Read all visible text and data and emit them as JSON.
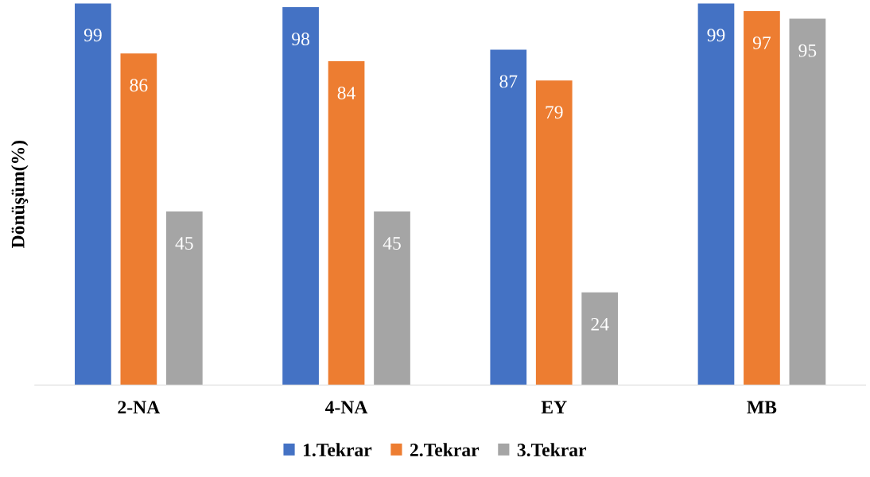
{
  "chart_data": {
    "type": "bar",
    "ylabel": "Dönüşüm(%)",
    "categories": [
      "2-NA",
      "4-NA",
      "EY",
      "MB"
    ],
    "series": [
      {
        "name": "1.Tekrar",
        "color": "#4472c4",
        "values": [
          99,
          98,
          87,
          99
        ]
      },
      {
        "name": "2.Tekrar",
        "color": "#ed7d31",
        "values": [
          86,
          84,
          79,
          97
        ]
      },
      {
        "name": "3.Tekrar",
        "color": "#a5a5a5",
        "values": [
          45,
          45,
          24,
          95
        ]
      }
    ],
    "data_labels": true,
    "tick_labels": "x",
    "grid": false,
    "legend": "bottom"
  }
}
